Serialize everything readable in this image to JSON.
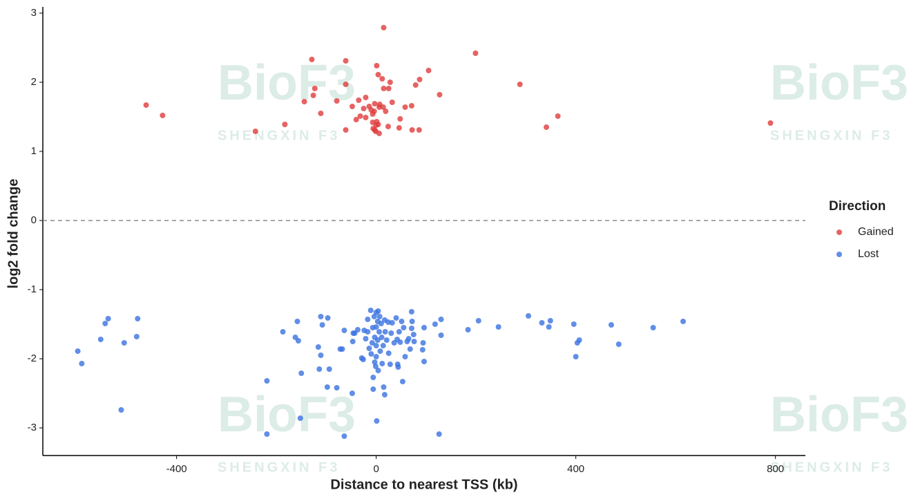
{
  "chart_data": {
    "type": "scatter",
    "xlabel": "Distance to nearest TSS (kb)",
    "ylabel": "log2 fold change",
    "legend_title": "Direction",
    "legend_position": "right",
    "hline": 0,
    "xlim": [
      -668,
      860
    ],
    "ylim": [
      -3.4,
      3.09
    ],
    "xticks": [
      -400,
      0,
      400,
      800
    ],
    "yticks": [
      -3,
      -2,
      -1,
      0,
      1,
      2,
      3
    ],
    "grid": false,
    "watermark": {
      "text": "BioF3",
      "subtext": "SHENGXIN F3"
    },
    "series": [
      {
        "name": "Gained",
        "color": "#e03c3c",
        "x": [
          15,
          199,
          -129,
          -61,
          1,
          105,
          4,
          87,
          12,
          28,
          -61,
          288,
          79,
          -123,
          15,
          25,
          127,
          -126,
          -21,
          -35,
          -79,
          -144,
          32,
          -461,
          -3,
          7,
          71,
          -14,
          -48,
          58,
          14,
          6,
          -25,
          -10,
          -4,
          19,
          -111,
          -7,
          -428,
          364,
          -32,
          -21,
          -40,
          48,
          1,
          -7,
          790,
          -183,
          4,
          0,
          24,
          341,
          46,
          -6,
          72,
          86,
          -61,
          -3,
          -242,
          -1,
          6
        ],
        "values": [
          2.79,
          2.42,
          2.33,
          2.31,
          2.24,
          2.17,
          2.11,
          2.04,
          2.05,
          2.0,
          1.97,
          1.97,
          1.96,
          1.91,
          1.91,
          1.91,
          1.82,
          1.81,
          1.78,
          1.74,
          1.73,
          1.72,
          1.71,
          1.67,
          1.69,
          1.68,
          1.66,
          1.65,
          1.65,
          1.64,
          1.64,
          1.64,
          1.62,
          1.6,
          1.58,
          1.58,
          1.55,
          1.54,
          1.52,
          1.51,
          1.51,
          1.49,
          1.46,
          1.47,
          1.43,
          1.42,
          1.41,
          1.39,
          1.39,
          1.38,
          1.36,
          1.35,
          1.34,
          1.33,
          1.31,
          1.31,
          1.31,
          1.31,
          1.29,
          1.29,
          1.26
        ]
      },
      {
        "name": "Lost",
        "color": "#3a72e0",
        "x": [
          -598,
          -590,
          -552,
          -543,
          -537,
          -511,
          -505,
          -480,
          -478,
          -219,
          -219,
          -187,
          -162,
          -158,
          -156,
          -152,
          -150,
          -116,
          -114,
          -111,
          -111,
          -108,
          -97,
          -94,
          -98,
          -79,
          -72,
          -68,
          -64,
          -64,
          -48,
          -47,
          -46,
          -43,
          -37,
          -29,
          -26,
          -24,
          -21,
          -17,
          -17,
          -14,
          -11,
          -10,
          -8,
          -7,
          -6,
          -6,
          -4,
          -3,
          -3,
          -1,
          0,
          0,
          0,
          0,
          1,
          3,
          3,
          4,
          4,
          6,
          7,
          8,
          10,
          11,
          12,
          14,
          15,
          17,
          17,
          18,
          21,
          24,
          25,
          28,
          30,
          32,
          36,
          40,
          42,
          43,
          44,
          46,
          48,
          51,
          53,
          55,
          58,
          62,
          65,
          68,
          71,
          71,
          72,
          75,
          76,
          93,
          94,
          96,
          96,
          118,
          126,
          130,
          130,
          184,
          205,
          245,
          305,
          332,
          346,
          349,
          396,
          400,
          403,
          407,
          471,
          486,
          555,
          615
        ],
        "values": [
          -1.89,
          -2.07,
          -1.72,
          -1.49,
          -1.42,
          -2.74,
          -1.77,
          -1.68,
          -1.42,
          -2.32,
          -3.09,
          -1.61,
          -1.69,
          -1.46,
          -1.74,
          -2.86,
          -2.21,
          -1.83,
          -2.15,
          -1.95,
          -1.39,
          -1.51,
          -1.41,
          -2.15,
          -2.41,
          -2.42,
          -1.86,
          -1.86,
          -1.59,
          -3.12,
          -2.5,
          -1.75,
          -1.63,
          -1.63,
          -1.58,
          -1.99,
          -2.01,
          -1.59,
          -1.71,
          -1.43,
          -1.61,
          -1.85,
          -1.3,
          -1.93,
          -1.77,
          -1.55,
          -2.27,
          -2.44,
          -1.39,
          -1.69,
          -2.05,
          -2.11,
          -1.33,
          -1.54,
          -1.81,
          -1.97,
          -2.9,
          -1.46,
          -1.73,
          -1.31,
          -2.17,
          -1.61,
          -1.39,
          -1.89,
          -1.49,
          -1.69,
          -2.07,
          -1.81,
          -2.41,
          -2.52,
          -1.44,
          -1.61,
          -1.73,
          -1.47,
          -1.92,
          -2.08,
          -1.63,
          -1.48,
          -1.77,
          -1.41,
          -1.72,
          -2.08,
          -2.12,
          -1.61,
          -1.76,
          -1.46,
          -2.33,
          -1.55,
          -1.97,
          -1.75,
          -1.71,
          -1.86,
          -1.56,
          -1.32,
          -1.46,
          -1.65,
          -1.75,
          -1.87,
          -1.77,
          -2.04,
          -1.55,
          -1.5,
          -3.09,
          -1.43,
          -1.66,
          -1.58,
          -1.45,
          -1.54,
          -1.38,
          -1.48,
          -1.54,
          -1.45,
          -1.5,
          -1.97,
          -1.77,
          -1.73,
          -1.51,
          -1.79,
          -1.55,
          -1.46
        ]
      }
    ]
  }
}
